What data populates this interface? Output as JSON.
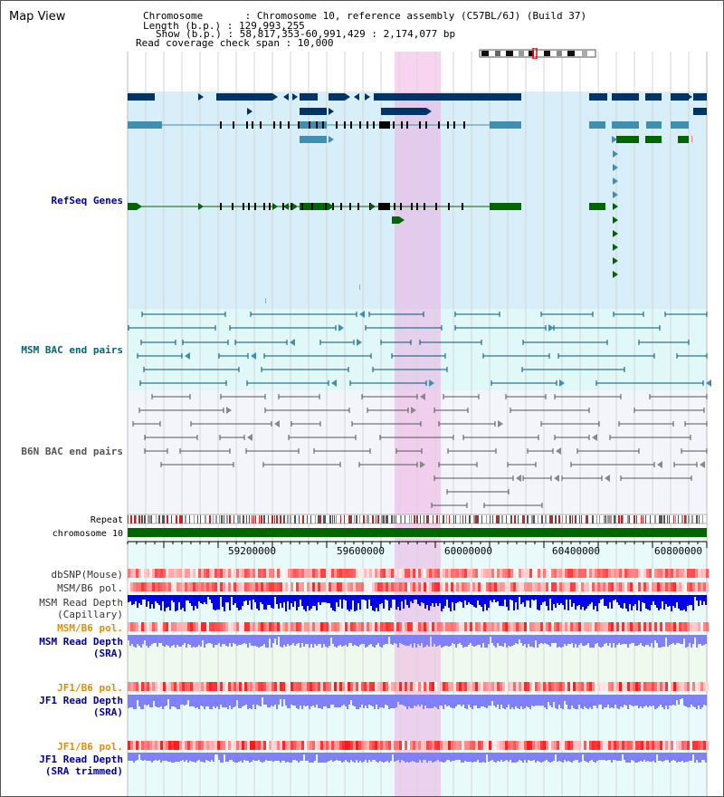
{
  "title": "Map View",
  "header": {
    "line1": "Chromosome       : Chromosome 10, reference assembly (C57BL/6J) (Build 37)",
    "line2": "Length (b.p.) : 129,993,255",
    "line3": "Show (b.p.) : 58,817,353-60,991,429 : 2,174,077 bp",
    "line4": "Read coverage check span : 10,000"
  },
  "labels": {
    "refseq": "RefSeq Genes",
    "msm_bac": "MSM BAC end pairs",
    "b6n_bac": "B6N BAC end pairs",
    "repeat": "Repeat",
    "chromosome": "chromosome 10",
    "dbsnp": "dbSNP(Mouse)",
    "msm_b6_pol_cap": "MSM/B6 pol.",
    "msm_read_depth_cap_1": "MSM Read Depth",
    "msm_read_depth_cap_2": "(Capillary)",
    "msm_b6_pol_sra": "MSM/B6 pol.",
    "msm_read_depth_sra_1": "MSM Read Depth",
    "msm_read_depth_sra_2": "(SRA)",
    "jf1_b6_pol_1": "JF1/B6 pol.",
    "jf1_read_depth_1": "JF1 Read Depth",
    "jf1_read_depth_1b": "(SRA)",
    "jf1_b6_pol_2": "JF1/B6 pol.",
    "jf1_read_depth_2": "JF1 Read Depth",
    "jf1_read_depth_2b": "(SRA trimmed)"
  },
  "axis_ticks": [
    "59200000",
    "59600000",
    "60000000",
    "60400000",
    "60800000"
  ],
  "colors": {
    "gene_dark": "#003366",
    "gene_mid": "#3f8fb0",
    "gene_green": "#006600",
    "refseq_bg": "#d8eef8",
    "bac_bg": "#e0f8f8",
    "b6n_bg": "#f4f6fa",
    "msm_line": "#005577",
    "b6n_line": "#555555",
    "highlight": "#f0a0e1",
    "snp_red": "#ff5050",
    "depth_blue": "#0000ee",
    "depth_light": "#8080ff",
    "label_blue": "#000099",
    "label_teal": "#006677",
    "label_orange": "#e09000"
  }
}
